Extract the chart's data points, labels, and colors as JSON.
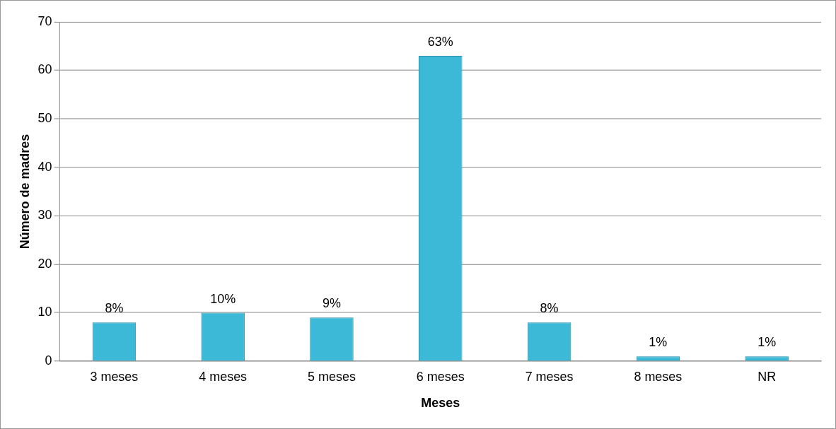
{
  "chart_data": {
    "type": "bar",
    "xlabel": "Meses",
    "ylabel": "Número de madres",
    "categories": [
      "3 meses",
      "4 meses",
      "5 meses",
      "6 meses",
      "7 meses",
      "8 meses",
      "NR"
    ],
    "values": [
      8,
      10,
      9,
      63,
      8,
      1,
      1
    ],
    "value_labels": [
      "8%",
      "10%",
      "9%",
      "63%",
      "8%",
      "1%",
      "1%"
    ],
    "color": "#3cb9d6",
    "ylim": [
      0,
      70
    ],
    "yticks": [
      0,
      10,
      20,
      30,
      40,
      50,
      60,
      70
    ],
    "grid": "y",
    "legend": false
  }
}
